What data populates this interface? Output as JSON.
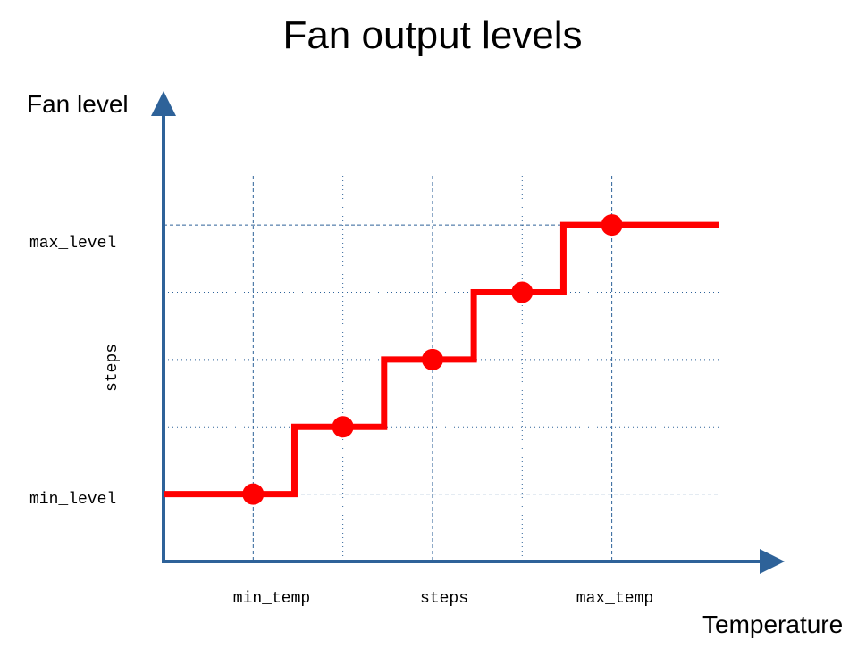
{
  "title": "Fan output levels",
  "y_axis": {
    "label": "Fan level",
    "levels": {
      "min": "min_level",
      "max": "max_level"
    },
    "steps_label": "steps"
  },
  "x_axis": {
    "label": "Temperature",
    "ticks": {
      "min": "min_temp",
      "steps": "steps",
      "max": "max_temp"
    }
  },
  "colors": {
    "axis": "#2e6299",
    "curve": "#ff0000",
    "grid": "#2e6299"
  },
  "chart_data": {
    "type": "line",
    "description_units": "abstract steps: x from min_temp (1) to max_temp (5); y from min_level (0) to max_level (4)",
    "x_gridlines": [
      1,
      2,
      3,
      4,
      5
    ],
    "y_gridlines": [
      0,
      1,
      2,
      3,
      4
    ],
    "x_range": [
      0,
      6.2
    ],
    "y_range": [
      -1,
      5.7
    ],
    "series": [
      {
        "name": "fan level",
        "style": "step",
        "points": [
          {
            "x": 1,
            "y": 0
          },
          {
            "x": 2,
            "y": 1
          },
          {
            "x": 3,
            "y": 2
          },
          {
            "x": 4,
            "y": 3
          },
          {
            "x": 5,
            "y": 4
          }
        ],
        "start_x": 0,
        "end_x": 6.2
      }
    ]
  }
}
